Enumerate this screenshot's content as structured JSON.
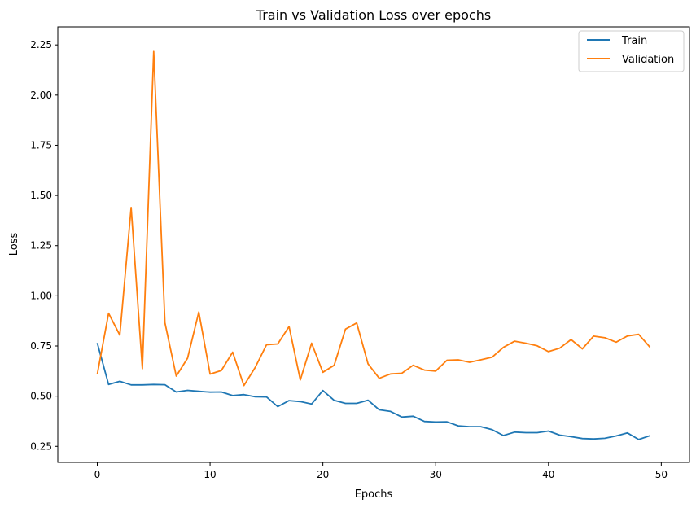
{
  "chart_data": {
    "type": "line",
    "title": "Train vs Validation Loss over epochs",
    "xlabel": "Epochs",
    "ylabel": "Loss",
    "xlim": [
      -3.5,
      52.5
    ],
    "ylim": [
      0.17,
      2.34
    ],
    "xticks": [
      0,
      10,
      20,
      30,
      40,
      50
    ],
    "yticks": [
      0.25,
      0.5,
      0.75,
      1.0,
      1.25,
      1.5,
      1.75,
      2.0,
      2.25
    ],
    "xtick_labels": [
      "0",
      "10",
      "20",
      "30",
      "40",
      "50"
    ],
    "ytick_labels": [
      "0.25",
      "0.50",
      "0.75",
      "1.00",
      "1.25",
      "1.50",
      "1.75",
      "2.00",
      "2.25"
    ],
    "grid": false,
    "legend_position": "top-right",
    "x": [
      0,
      1,
      2,
      3,
      4,
      5,
      6,
      7,
      8,
      9,
      10,
      11,
      12,
      13,
      14,
      15,
      16,
      17,
      18,
      19,
      20,
      21,
      22,
      23,
      24,
      25,
      26,
      27,
      28,
      29,
      30,
      31,
      32,
      33,
      34,
      35,
      36,
      37,
      38,
      39,
      40,
      41,
      42,
      43,
      44,
      45,
      46,
      47,
      48,
      49
    ],
    "series": [
      {
        "name": "Train",
        "color": "#1f77b4",
        "values": [
          0.765,
          0.558,
          0.574,
          0.556,
          0.556,
          0.558,
          0.557,
          0.521,
          0.529,
          0.524,
          0.52,
          0.521,
          0.503,
          0.508,
          0.497,
          0.496,
          0.448,
          0.478,
          0.473,
          0.461,
          0.528,
          0.479,
          0.464,
          0.464,
          0.48,
          0.432,
          0.424,
          0.396,
          0.4,
          0.374,
          0.371,
          0.372,
          0.352,
          0.348,
          0.348,
          0.333,
          0.304,
          0.321,
          0.318,
          0.318,
          0.326,
          0.306,
          0.298,
          0.289,
          0.287,
          0.29,
          0.302,
          0.317,
          0.284,
          0.303
        ]
      },
      {
        "name": "Validation",
        "color": "#ff7f0e",
        "values": [
          0.609,
          0.913,
          0.804,
          1.44,
          0.637,
          2.217,
          0.866,
          0.6,
          0.689,
          0.919,
          0.61,
          0.628,
          0.719,
          0.553,
          0.643,
          0.756,
          0.76,
          0.847,
          0.581,
          0.764,
          0.619,
          0.654,
          0.834,
          0.865,
          0.661,
          0.589,
          0.611,
          0.614,
          0.654,
          0.63,
          0.625,
          0.679,
          0.681,
          0.669,
          0.681,
          0.694,
          0.743,
          0.774,
          0.764,
          0.751,
          0.722,
          0.739,
          0.782,
          0.736,
          0.799,
          0.791,
          0.769,
          0.8,
          0.808,
          0.744
        ]
      }
    ]
  }
}
